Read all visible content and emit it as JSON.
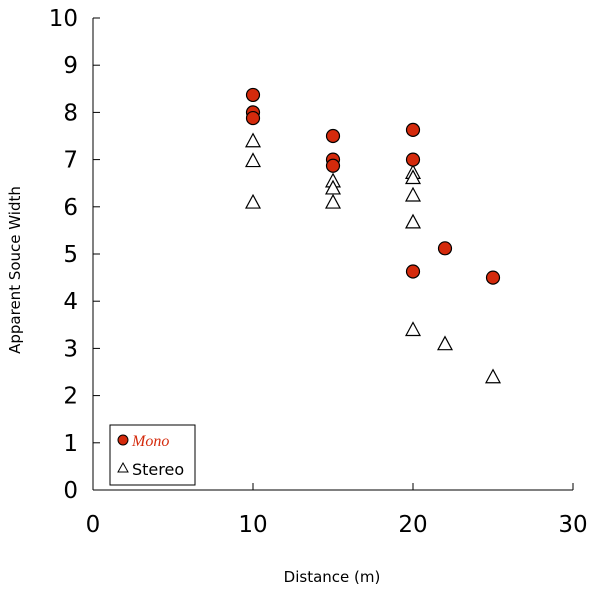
{
  "chart_data": {
    "type": "scatter",
    "xlabel": "Distance (m)",
    "ylabel": "Apparent Souce Width",
    "xlim": [
      0,
      30
    ],
    "ylim": [
      0,
      10
    ],
    "x_ticks": [
      "0",
      "10",
      "20",
      "30"
    ],
    "y_ticks": [
      "0",
      "1",
      "2",
      "3",
      "4",
      "5",
      "6",
      "7",
      "8",
      "9",
      "10"
    ],
    "grid": false,
    "legend": "bottom-left",
    "series": [
      {
        "name": "Mono",
        "marker": "circle",
        "color": "#d42a0c",
        "points": [
          [
            10,
            8.37
          ],
          [
            10,
            8.0
          ],
          [
            10,
            7.88
          ],
          [
            15,
            7.5
          ],
          [
            15,
            7.0
          ],
          [
            15,
            6.87
          ],
          [
            20,
            7.63
          ],
          [
            20,
            7.0
          ],
          [
            20,
            4.63
          ],
          [
            22,
            5.12
          ],
          [
            25,
            4.5
          ]
        ]
      },
      {
        "name": "Stereo",
        "marker": "triangle",
        "color": "#ffffff",
        "points": [
          [
            10,
            7.4
          ],
          [
            10,
            6.98
          ],
          [
            10,
            6.1
          ],
          [
            15,
            6.55
          ],
          [
            15,
            6.4
          ],
          [
            15,
            6.1
          ],
          [
            20,
            6.73
          ],
          [
            20,
            6.62
          ],
          [
            20,
            6.25
          ],
          [
            20,
            5.68
          ],
          [
            20,
            3.4
          ],
          [
            22,
            3.1
          ],
          [
            25,
            2.4
          ]
        ]
      }
    ]
  }
}
